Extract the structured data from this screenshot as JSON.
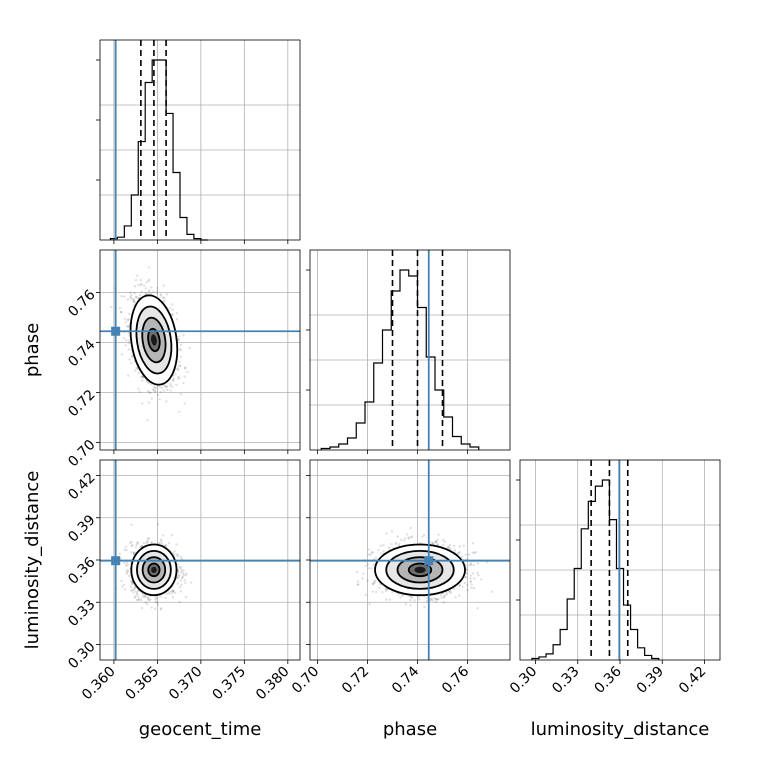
{
  "chart_data": {
    "type": "corner",
    "parameters": [
      {
        "name": "geocent_time",
        "label": "geocent_time",
        "range": [
          0.3584,
          0.3814
        ],
        "ticks": [
          "0.360",
          "0.365",
          "0.370",
          "0.375",
          "0.380"
        ],
        "tick_values": [
          0.36,
          0.365,
          0.37,
          0.375,
          0.38
        ],
        "truth": 0.3602,
        "quantiles": [
          0.3631,
          0.3646,
          0.366
        ]
      },
      {
        "name": "phase",
        "label": "phase",
        "range": [
          0.697,
          0.777
        ],
        "ticks": [
          "0.70",
          "0.72",
          "0.74",
          "0.76"
        ],
        "tick_values": [
          0.7,
          0.72,
          0.74,
          0.76
        ],
        "truth": 0.7445,
        "quantiles": [
          0.73,
          0.74,
          0.75
        ]
      },
      {
        "name": "luminosity_distance",
        "label": "luminosity_distance",
        "range": [
          0.289,
          0.431
        ],
        "ticks": [
          "0.30",
          "0.33",
          "0.36",
          "0.39",
          "0.42"
        ],
        "tick_values": [
          0.3,
          0.33,
          0.36,
          0.39,
          0.42
        ],
        "truth": 0.3595,
        "quantiles": [
          0.3395,
          0.3525,
          0.3655
        ]
      }
    ],
    "histograms": {
      "geocent_time": {
        "bin_edges_start": 0.3596,
        "bin_width": 0.0008,
        "counts": [
          1,
          2,
          10,
          32,
          70,
          112,
          128,
          128,
          90,
          48,
          16,
          4,
          1,
          0
        ]
      },
      "phase": {
        "bin_edges_start": 0.7015,
        "bin_width": 0.0035,
        "counts": [
          1,
          2,
          4,
          8,
          18,
          32,
          58,
          80,
          106,
          120,
          116,
          95,
          62,
          40,
          22,
          9,
          4,
          2
        ]
      },
      "luminosity_distance": {
        "bin_edges_start": 0.2975,
        "bin_width": 0.005,
        "counts": [
          1,
          2,
          4,
          10,
          20,
          40,
          60,
          86,
          104,
          114,
          118,
          92,
          60,
          36,
          20,
          8,
          3,
          1
        ]
      }
    },
    "joint_posteriors": [
      {
        "x": "geocent_time",
        "y": "phase",
        "mean": [
          0.3646,
          0.741
        ],
        "std": [
          0.0013,
          0.009
        ],
        "correlation": -0.35
      },
      {
        "x": "geocent_time",
        "y": "luminosity_distance",
        "mean": [
          0.3646,
          0.353
        ],
        "std": [
          0.0013,
          0.009
        ],
        "correlation": 0.0
      },
      {
        "x": "phase",
        "y": "luminosity_distance",
        "mean": [
          0.741,
          0.353
        ],
        "std": [
          0.009,
          0.009
        ],
        "correlation": 0.0
      }
    ],
    "truth_color": "#4682b4",
    "quantile_style": "dashed",
    "grid": true,
    "contour_levels_sigma": [
      0.5,
      1.0,
      1.5,
      2.0
    ]
  }
}
